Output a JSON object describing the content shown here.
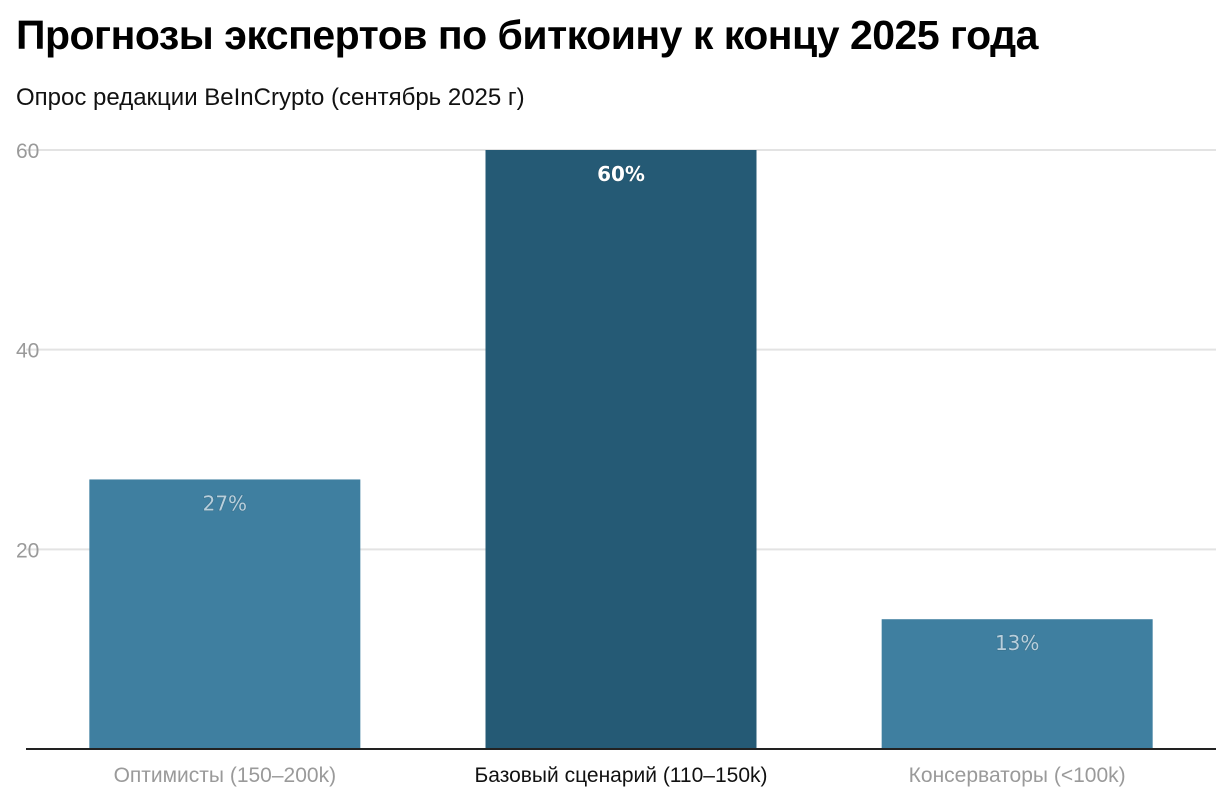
{
  "chart_data": {
    "type": "bar",
    "title": "Прогнозы экспертов по биткоину к концу 2025 года",
    "subtitle": "Опрос редакции BeInCrypto (сентябрь 2025 г)",
    "categories": [
      "Оптимисты (150–200k)",
      "Базовый сценарий (110–150k)",
      "Консерваторы (<100k)"
    ],
    "values": [
      27,
      60,
      13
    ],
    "data_labels": [
      "27%",
      "60%",
      "13%"
    ],
    "highlighted_category": "Базовый сценарий (110–150k)",
    "xlabel": "",
    "ylabel": "",
    "ylim": [
      0,
      60
    ],
    "yticks": [
      20,
      40,
      60
    ],
    "ytick_labels": [
      "20",
      "40",
      "60"
    ],
    "grid": true,
    "colors": {
      "default": "#3f7fa0",
      "highlight": "#255a75",
      "grid": "#e3e3e3",
      "axis": "#222222",
      "tick_text": "#9a9a9a"
    }
  }
}
